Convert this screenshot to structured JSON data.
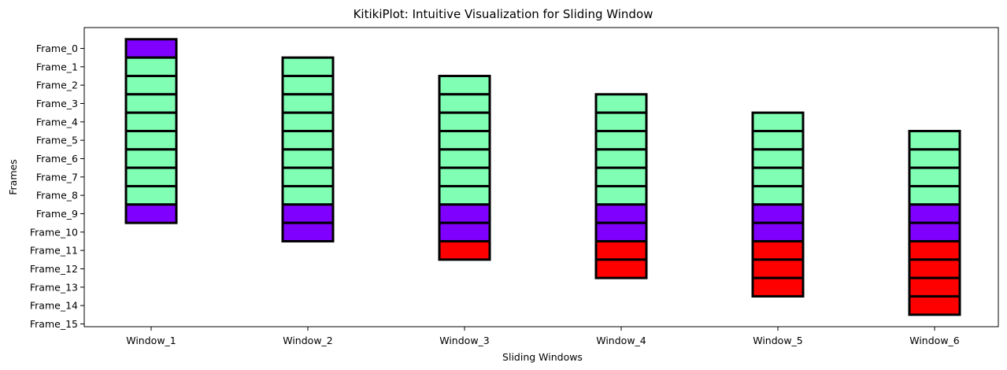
{
  "chart_data": {
    "type": "table",
    "title": "KitikiPlot: Intuitive Visualization for Sliding Window",
    "xlabel": "Sliding Windows",
    "ylabel": "Frames",
    "x_ticks": [
      "Window_1",
      "Window_2",
      "Window_3",
      "Window_4",
      "Window_5",
      "Window_6"
    ],
    "y_ticks": [
      "Frame_0",
      "Frame_1",
      "Frame_2",
      "Frame_3",
      "Frame_4",
      "Frame_5",
      "Frame_6",
      "Frame_7",
      "Frame_8",
      "Frame_9",
      "Frame_10",
      "Frame_11",
      "Frame_12",
      "Frame_13",
      "Frame_14",
      "Frame_15"
    ],
    "grid": false,
    "colors": {
      "A": "#8000ff",
      "B": "#80ffb4",
      "C": "#ff0000"
    },
    "windows": [
      {
        "name": "Window_1",
        "start_frame": 0,
        "cells": [
          "A",
          "B",
          "B",
          "B",
          "B",
          "B",
          "B",
          "B",
          "B",
          "A"
        ]
      },
      {
        "name": "Window_2",
        "start_frame": 1,
        "cells": [
          "B",
          "B",
          "B",
          "B",
          "B",
          "B",
          "B",
          "B",
          "A",
          "A"
        ]
      },
      {
        "name": "Window_3",
        "start_frame": 2,
        "cells": [
          "B",
          "B",
          "B",
          "B",
          "B",
          "B",
          "B",
          "A",
          "A",
          "C"
        ]
      },
      {
        "name": "Window_4",
        "start_frame": 3,
        "cells": [
          "B",
          "B",
          "B",
          "B",
          "B",
          "B",
          "A",
          "A",
          "C",
          "C"
        ]
      },
      {
        "name": "Window_5",
        "start_frame": 4,
        "cells": [
          "B",
          "B",
          "B",
          "B",
          "B",
          "A",
          "A",
          "C",
          "C",
          "C"
        ]
      },
      {
        "name": "Window_6",
        "start_frame": 5,
        "cells": [
          "B",
          "B",
          "B",
          "B",
          "A",
          "A",
          "C",
          "C",
          "C",
          "C"
        ]
      }
    ]
  }
}
